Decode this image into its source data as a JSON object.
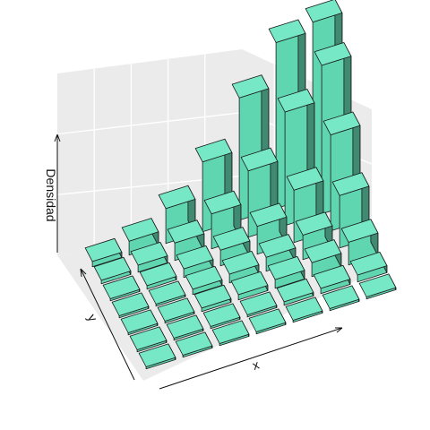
{
  "chart_data": {
    "type": "3d-histogram",
    "xlabel": "x",
    "ylabel": "y",
    "zlabel": "Densidad",
    "x_bins": 7,
    "y_bins": 7,
    "grid": true,
    "colors": {
      "bar_top": "#76e8c6",
      "bar_front": "#5fd6b0",
      "bar_side": "#3f8a70",
      "walls": "#ebebeb",
      "grid": "#ffffff"
    },
    "density": [
      [
        0,
        0,
        0,
        0,
        0,
        0,
        0
      ],
      [
        0,
        0.01,
        0.01,
        0.01,
        0.02,
        0.03,
        0.04
      ],
      [
        0,
        0.01,
        0.02,
        0.03,
        0.05,
        0.08,
        0.13
      ],
      [
        0,
        0.01,
        0.03,
        0.05,
        0.08,
        0.14,
        0.3
      ],
      [
        0.01,
        0.02,
        0.05,
        0.09,
        0.16,
        0.3,
        0.55
      ],
      [
        0.02,
        0.04,
        0.1,
        0.2,
        0.38,
        0.65,
        0.85
      ],
      [
        0.03,
        0.08,
        0.2,
        0.4,
        0.7,
        0.95,
        1.0
      ]
    ]
  }
}
